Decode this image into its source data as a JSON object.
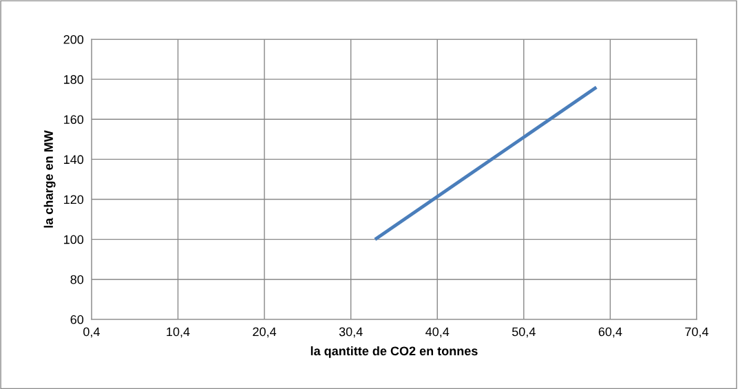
{
  "chart_data": {
    "type": "line",
    "xlabel": "la qantitte de CO2 en tonnes",
    "ylabel": "la charge en MW",
    "series": [
      {
        "color": "#4a7ebb",
        "x": [
          33.2,
          58.8
        ],
        "values": [
          100,
          176
        ]
      }
    ],
    "xlim": [
      0.4,
      70.4
    ],
    "xticks": [
      {
        "value": 0.4,
        "label": "0,4"
      },
      {
        "value": 10.4,
        "label": "10,4"
      },
      {
        "value": 20.4,
        "label": "20,4"
      },
      {
        "value": 30.4,
        "label": "30,4"
      },
      {
        "value": 40.4,
        "label": "40,4"
      },
      {
        "value": 50.4,
        "label": "50,4"
      },
      {
        "value": 60.4,
        "label": "60,4"
      },
      {
        "value": 70.4,
        "label": "70,4"
      }
    ],
    "ylim": [
      60,
      200
    ],
    "yticks": [
      60,
      80,
      100,
      120,
      140,
      160,
      180,
      200
    ],
    "grid": true,
    "marker": "none",
    "line_style": "solid"
  }
}
